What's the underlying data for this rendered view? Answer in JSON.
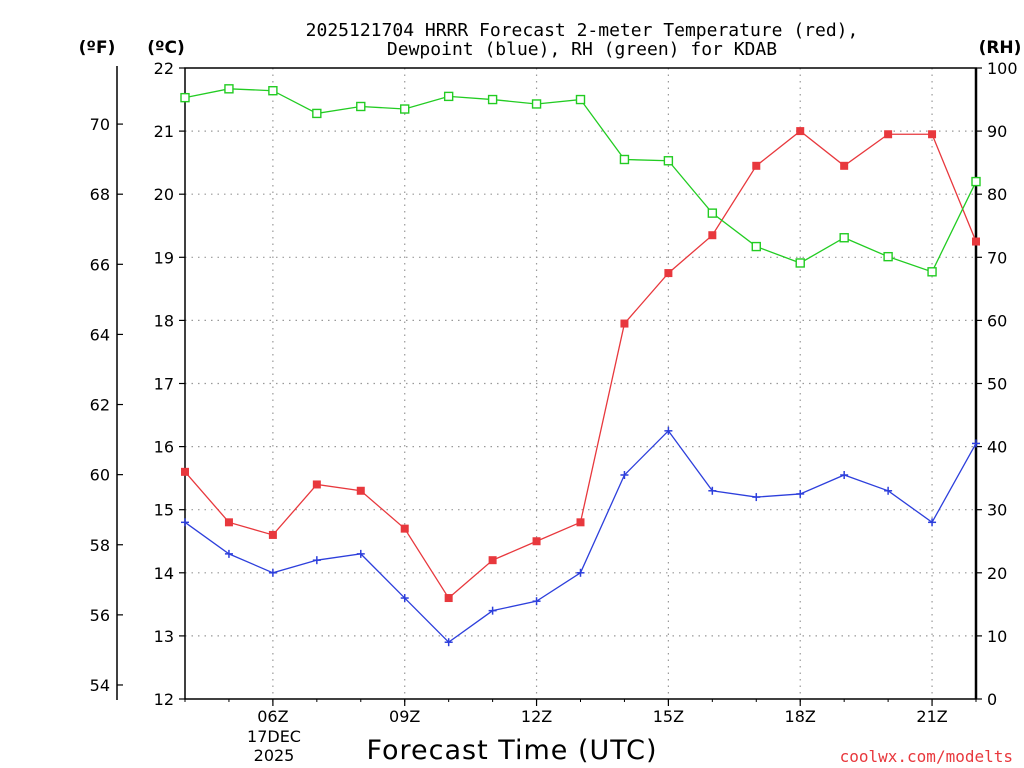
{
  "chart_data": {
    "type": "line",
    "title_line1": "2025121704 HRRR Forecast 2-meter Temperature (red),",
    "title_line2": "Dewpoint (blue), RH (green) for KDAB",
    "xlabel": "Forecast Time (UTC)",
    "y_left_f_label": "(ºF)",
    "y_left_c_label": "(ºC)",
    "y_right_label": "(RH)",
    "credit": "coolwx.com/modelts",
    "x_hours": [
      4,
      5,
      6,
      7,
      8,
      9,
      10,
      11,
      12,
      13,
      14,
      15,
      16,
      17,
      18,
      19,
      20,
      21,
      22
    ],
    "xlim": [
      4,
      22
    ],
    "x_ticks": [
      {
        "hour": 6,
        "label": "06Z"
      },
      {
        "hour": 9,
        "label": "09Z"
      },
      {
        "hour": 12,
        "label": "12Z"
      },
      {
        "hour": 15,
        "label": "15Z"
      },
      {
        "hour": 18,
        "label": "18Z"
      },
      {
        "hour": 21,
        "label": "21Z"
      }
    ],
    "date_line1": "17DEC",
    "date_line2": "2025",
    "ylim_c": [
      12,
      22
    ],
    "y_ticks_c": [
      "12",
      "13",
      "14",
      "15",
      "16",
      "17",
      "18",
      "19",
      "20",
      "21",
      "22"
    ],
    "y_ticks_f": [
      "54",
      "56",
      "58",
      "60",
      "62",
      "64",
      "66",
      "68",
      "70"
    ],
    "ylim_rh": [
      0,
      100
    ],
    "y_ticks_rh": [
      "0",
      "10",
      "20",
      "30",
      "40",
      "50",
      "60",
      "70",
      "80",
      "90",
      "100"
    ],
    "series": [
      {
        "name": "Temperature",
        "color": "#e8383d",
        "marker": "filled-square",
        "values": [
          15.6,
          14.8,
          14.6,
          15.4,
          15.3,
          14.7,
          13.6,
          14.2,
          14.5,
          14.8,
          17.95,
          18.75,
          19.35,
          20.45,
          21.0,
          20.45,
          20.95,
          20.95,
          19.25
        ]
      },
      {
        "name": "Dewpoint",
        "color": "#2d3fdc",
        "marker": "plus",
        "values": [
          14.8,
          14.3,
          14.0,
          14.2,
          14.3,
          13.6,
          12.9,
          13.4,
          13.55,
          14.0,
          15.55,
          16.25,
          15.3,
          15.2,
          15.25,
          15.55,
          15.3,
          14.8,
          16.05
        ]
      },
      {
        "name": "RH",
        "color": "#22cc22",
        "marker": "open-square",
        "values": [
          95.3,
          96.7,
          96.4,
          92.8,
          93.9,
          93.5,
          95.5,
          95.0,
          94.3,
          95.0,
          85.5,
          85.3,
          77.0,
          71.7,
          69.1,
          73.1,
          70.1,
          67.7,
          82.0
        ]
      }
    ]
  }
}
